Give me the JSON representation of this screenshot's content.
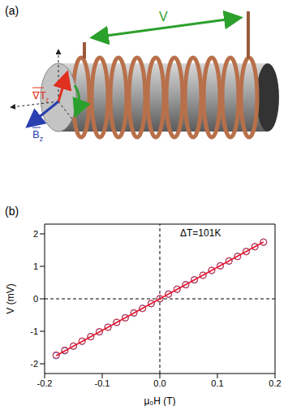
{
  "diagram": {
    "panel_label": "(a)",
    "voltage_label": "V",
    "gradient_label": {
      "text": "∇T",
      "sub": "r"
    },
    "field_label": {
      "text": "B",
      "sub": "z"
    }
  },
  "chart_data": {
    "type": "scatter",
    "panel_label": "(b)",
    "x_label": "μ₀H (T)",
    "y_label": "V (mV)",
    "annotations": [
      "ΔT=101K"
    ],
    "xlim": [
      -0.2,
      0.2
    ],
    "xticks": [
      -0.2,
      -0.1,
      {
        "value": 0,
        "label": "0.0"
      },
      0.1,
      0.2
    ],
    "ylim": [
      -2.3,
      2.3
    ],
    "yticks": [
      -2,
      -1,
      0,
      1,
      2
    ],
    "grid": false,
    "ref_lines": [
      {
        "axis": "x",
        "value": 0
      },
      {
        "axis": "y",
        "value": 0
      }
    ],
    "series": [
      {
        "type": "scatter",
        "marker": "open_circle",
        "color": "#3a4fc4",
        "x": [
          -0.18,
          -0.165,
          -0.15,
          -0.135,
          -0.12,
          -0.105,
          -0.09,
          -0.075,
          -0.06,
          -0.045,
          -0.03,
          -0.015,
          0,
          0.015,
          0.03,
          0.045,
          0.06,
          0.075,
          0.09,
          0.105,
          0.12,
          0.135,
          0.15,
          0.165,
          0.18
        ],
        "values": [
          -1.75,
          -1.6,
          -1.46,
          -1.31,
          -1.16,
          -1.02,
          -0.87,
          -0.73,
          -0.58,
          -0.44,
          -0.29,
          -0.15,
          0,
          0.15,
          0.29,
          0.44,
          0.58,
          0.73,
          0.87,
          1.02,
          1.16,
          1.31,
          1.46,
          1.6,
          1.75
        ]
      },
      {
        "type": "scatter",
        "marker": "open_circle",
        "color": "#e03030",
        "x": [
          -0.18,
          -0.165,
          -0.15,
          -0.135,
          -0.12,
          -0.105,
          -0.09,
          -0.075,
          -0.06,
          -0.045,
          -0.03,
          -0.015,
          0,
          0.015,
          0.03,
          0.045,
          0.06,
          0.075,
          0.09,
          0.105,
          0.12,
          0.135,
          0.15,
          0.165,
          0.18
        ],
        "values": [
          -1.73,
          -1.58,
          -1.45,
          -1.3,
          -1.17,
          -1.01,
          -0.88,
          -0.72,
          -0.59,
          -0.43,
          -0.3,
          -0.14,
          0.01,
          0.14,
          0.3,
          0.43,
          0.59,
          0.72,
          0.88,
          1.01,
          1.17,
          1.3,
          1.45,
          1.61,
          1.74
        ]
      },
      {
        "type": "line",
        "line_style": "solid",
        "color": "#e8102a",
        "x": [
          -0.18,
          0.18
        ],
        "values": [
          -1.75,
          1.75
        ]
      }
    ]
  }
}
